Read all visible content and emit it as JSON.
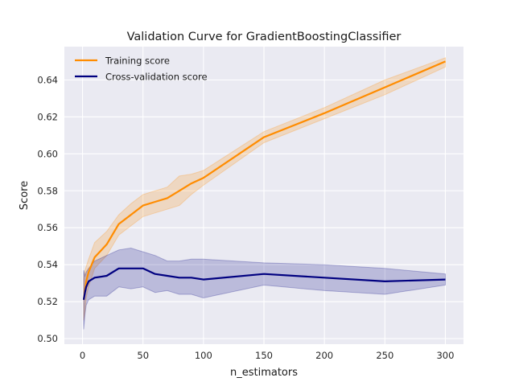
{
  "chart_data": {
    "type": "line",
    "title": "Validation Curve for GradientBoostingClassifier",
    "xlabel": "n_estimators",
    "ylabel": "Score",
    "xlim": [
      -15,
      315
    ],
    "ylim": [
      0.497,
      0.658
    ],
    "xticks": [
      0,
      50,
      100,
      150,
      200,
      250,
      300
    ],
    "yticks": [
      0.5,
      0.52,
      0.54,
      0.56,
      0.58,
      0.6,
      0.62,
      0.64
    ],
    "grid": true,
    "legend_position": "upper-left",
    "series": [
      {
        "name": "Training score",
        "color": "#ff8c00",
        "x": [
          1,
          2,
          3,
          5,
          10,
          20,
          30,
          40,
          50,
          60,
          70,
          80,
          90,
          100,
          150,
          200,
          250,
          300
        ],
        "mean": [
          0.521,
          0.526,
          0.531,
          0.536,
          0.544,
          0.551,
          0.562,
          0.567,
          0.572,
          0.574,
          0.576,
          0.58,
          0.584,
          0.587,
          0.609,
          0.622,
          0.636,
          0.65
        ],
        "upper": [
          0.532,
          0.537,
          0.539,
          0.543,
          0.552,
          0.558,
          0.567,
          0.573,
          0.578,
          0.58,
          0.582,
          0.588,
          0.589,
          0.591,
          0.612,
          0.625,
          0.64,
          0.652
        ],
        "lower": [
          0.51,
          0.515,
          0.522,
          0.528,
          0.538,
          0.545,
          0.556,
          0.561,
          0.566,
          0.568,
          0.57,
          0.572,
          0.578,
          0.583,
          0.606,
          0.619,
          0.632,
          0.647
        ]
      },
      {
        "name": "Cross-validation score",
        "color": "#000080",
        "x": [
          1,
          2,
          3,
          5,
          10,
          20,
          30,
          40,
          50,
          60,
          70,
          80,
          90,
          100,
          150,
          200,
          250,
          300
        ],
        "mean": [
          0.521,
          0.525,
          0.528,
          0.531,
          0.533,
          0.534,
          0.538,
          0.538,
          0.538,
          0.535,
          0.534,
          0.533,
          0.533,
          0.532,
          0.535,
          0.533,
          0.531,
          0.532
        ],
        "upper": [
          0.537,
          0.534,
          0.536,
          0.538,
          0.542,
          0.545,
          0.548,
          0.549,
          0.547,
          0.545,
          0.542,
          0.542,
          0.543,
          0.543,
          0.541,
          0.54,
          0.538,
          0.535
        ],
        "lower": [
          0.505,
          0.513,
          0.518,
          0.521,
          0.523,
          0.523,
          0.528,
          0.527,
          0.528,
          0.525,
          0.526,
          0.524,
          0.524,
          0.522,
          0.529,
          0.526,
          0.524,
          0.529
        ]
      }
    ]
  }
}
